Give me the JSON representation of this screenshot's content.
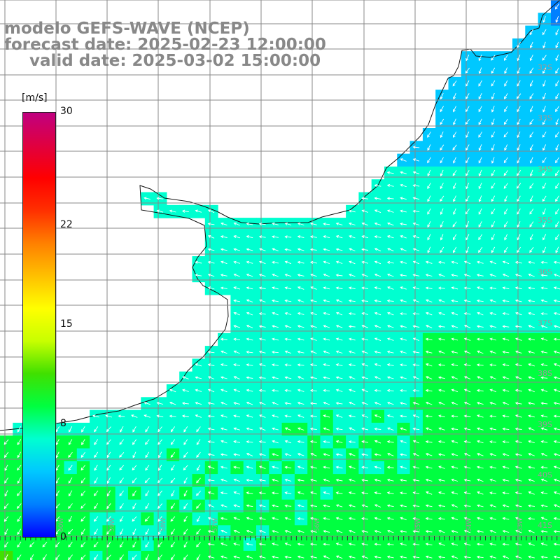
{
  "title": {
    "line1": "modelo GEFS-WAVE (NCEP)",
    "line2": "forecast date: 2025-02-23 12:00:00",
    "line3": "valid date: 2025-03-02 15:00:00"
  },
  "colorbar": {
    "unit": "[m/s]",
    "ticks": [
      "30",
      "22",
      "15",
      "8",
      "0"
    ],
    "tick_values": [
      30,
      22,
      15,
      8,
      0
    ],
    "range": [
      0,
      30
    ],
    "colors": [
      "#0000ff",
      "#0080ff",
      "#00c8ff",
      "#00ffd0",
      "#00ff40",
      "#40e000",
      "#c8ff00",
      "#ffff00",
      "#ffc000",
      "#ff8000",
      "#ff3000",
      "#ff0000",
      "#e00040",
      "#c00080"
    ]
  },
  "map": {
    "lat_labels": [
      "32S",
      "33S",
      "34S",
      "35S",
      "36S",
      "37S",
      "38S",
      "39S",
      "40S",
      "41S"
    ],
    "lon_labels": [
      "60W",
      "59W",
      "58W",
      "57W",
      "56W",
      "55W",
      "54W",
      "53W"
    ],
    "land_color": "#ffffff",
    "grid_color": "#888888",
    "arrow_color": "#ffffff"
  }
}
